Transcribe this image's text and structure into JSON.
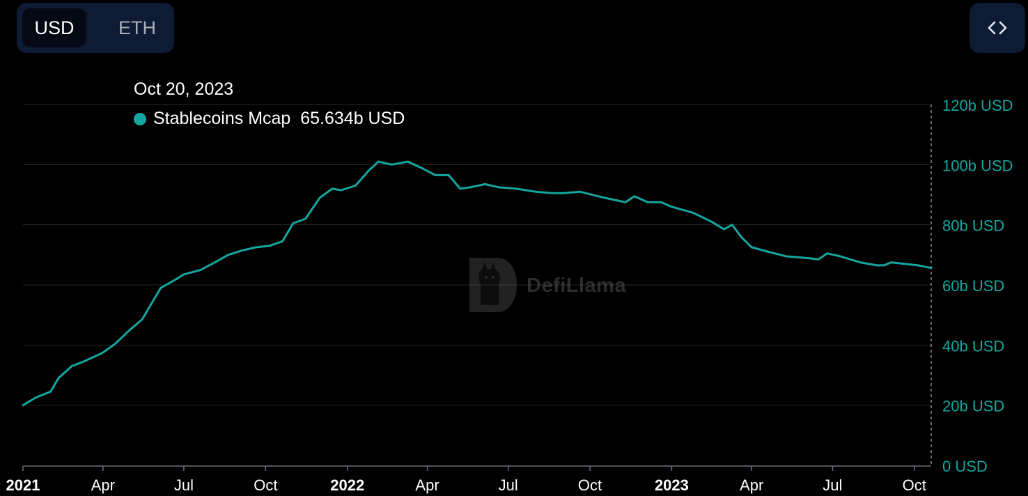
{
  "toolbar": {
    "currency_options": [
      "USD",
      "ETH"
    ],
    "selected_currency": "USD",
    "embed_icon": "code-brackets-icon"
  },
  "tooltip": {
    "date": "Oct 20, 2023",
    "series_name": "Stablecoins Mcap",
    "value": "65.634b USD"
  },
  "watermark": {
    "text": "DefiLlama",
    "icon": "llama-logo-icon"
  },
  "colors": {
    "background": "#000000",
    "line": "#14a6a0",
    "axis_label_right": "#14a6a0",
    "grid": "#2a2a2a",
    "panel": "#0e1b34"
  },
  "chart_data": {
    "type": "line",
    "title": "",
    "xlabel": "",
    "ylabel": "",
    "ylim": [
      0,
      120
    ],
    "y_ticks": [
      {
        "value": 0,
        "label": "0 USD"
      },
      {
        "value": 20,
        "label": "20b USD"
      },
      {
        "value": 40,
        "label": "40b USD"
      },
      {
        "value": 60,
        "label": "60b USD"
      },
      {
        "value": 80,
        "label": "80b USD"
      },
      {
        "value": 100,
        "label": "100b USD"
      },
      {
        "value": 120,
        "label": "120b USD"
      }
    ],
    "x_ticks": [
      {
        "date": "2021-01-01",
        "label": "2021",
        "bold": true
      },
      {
        "date": "2021-04-01",
        "label": "Apr",
        "bold": false
      },
      {
        "date": "2021-07-01",
        "label": "Jul",
        "bold": false
      },
      {
        "date": "2021-10-01",
        "label": "Oct",
        "bold": false
      },
      {
        "date": "2022-01-01",
        "label": "2022",
        "bold": true
      },
      {
        "date": "2022-04-01",
        "label": "Apr",
        "bold": false
      },
      {
        "date": "2022-07-01",
        "label": "Jul",
        "bold": false
      },
      {
        "date": "2022-10-01",
        "label": "Oct",
        "bold": false
      },
      {
        "date": "2023-01-01",
        "label": "2023",
        "bold": true
      },
      {
        "date": "2023-04-01",
        "label": "Apr",
        "bold": false
      },
      {
        "date": "2023-07-01",
        "label": "Jul",
        "bold": false
      },
      {
        "date": "2023-10-01",
        "label": "Oct",
        "bold": false
      }
    ],
    "x_range": [
      "2021-01-01",
      "2023-10-20"
    ],
    "grid": true,
    "series": [
      {
        "name": "Stablecoins Mcap",
        "unit": "b USD",
        "points": [
          [
            "2021-01-01",
            20.0
          ],
          [
            "2021-01-15",
            22.5
          ],
          [
            "2021-02-01",
            24.5
          ],
          [
            "2021-02-10",
            29.0
          ],
          [
            "2021-02-25",
            33.0
          ],
          [
            "2021-03-10",
            34.5
          ],
          [
            "2021-03-25",
            36.5
          ],
          [
            "2021-04-01",
            37.5
          ],
          [
            "2021-04-15",
            40.5
          ],
          [
            "2021-05-01",
            45.0
          ],
          [
            "2021-05-15",
            48.5
          ],
          [
            "2021-05-25",
            53.5
          ],
          [
            "2021-06-05",
            59.0
          ],
          [
            "2021-06-20",
            61.5
          ],
          [
            "2021-07-01",
            63.5
          ],
          [
            "2021-07-20",
            65.0
          ],
          [
            "2021-08-05",
            67.5
          ],
          [
            "2021-08-20",
            70.0
          ],
          [
            "2021-09-05",
            71.5
          ],
          [
            "2021-09-20",
            72.5
          ],
          [
            "2021-10-05",
            73.0
          ],
          [
            "2021-10-20",
            74.5
          ],
          [
            "2021-11-01",
            80.5
          ],
          [
            "2021-11-15",
            82.0
          ],
          [
            "2021-12-01",
            89.0
          ],
          [
            "2021-12-15",
            92.0
          ],
          [
            "2021-12-25",
            91.5
          ],
          [
            "2022-01-10",
            93.0
          ],
          [
            "2022-01-25",
            98.0
          ],
          [
            "2022-02-05",
            101.0
          ],
          [
            "2022-02-20",
            100.0
          ],
          [
            "2022-03-10",
            101.0
          ],
          [
            "2022-03-25",
            99.0
          ],
          [
            "2022-04-10",
            96.5
          ],
          [
            "2022-04-25",
            96.5
          ],
          [
            "2022-05-08",
            92.0
          ],
          [
            "2022-05-20",
            92.5
          ],
          [
            "2022-06-05",
            93.5
          ],
          [
            "2022-06-20",
            92.5
          ],
          [
            "2022-07-10",
            92.0
          ],
          [
            "2022-08-01",
            91.0
          ],
          [
            "2022-08-20",
            90.5
          ],
          [
            "2022-09-01",
            90.5
          ],
          [
            "2022-09-20",
            91.0
          ],
          [
            "2022-10-10",
            89.5
          ],
          [
            "2022-10-25",
            88.5
          ],
          [
            "2022-11-10",
            87.5
          ],
          [
            "2022-11-20",
            89.5
          ],
          [
            "2022-12-05",
            87.5
          ],
          [
            "2022-12-20",
            87.5
          ],
          [
            "2023-01-01",
            86.0
          ],
          [
            "2023-01-25",
            84.0
          ],
          [
            "2023-02-15",
            81.0
          ],
          [
            "2023-03-01",
            78.5
          ],
          [
            "2023-03-10",
            80.0
          ],
          [
            "2023-03-20",
            76.0
          ],
          [
            "2023-04-01",
            72.5
          ],
          [
            "2023-04-20",
            71.0
          ],
          [
            "2023-05-10",
            69.5
          ],
          [
            "2023-06-01",
            69.0
          ],
          [
            "2023-06-15",
            68.5
          ],
          [
            "2023-06-25",
            70.5
          ],
          [
            "2023-07-10",
            69.5
          ],
          [
            "2023-08-01",
            67.5
          ],
          [
            "2023-08-20",
            66.5
          ],
          [
            "2023-08-28",
            66.5
          ],
          [
            "2023-09-05",
            67.5
          ],
          [
            "2023-09-20",
            67.0
          ],
          [
            "2023-10-05",
            66.5
          ],
          [
            "2023-10-20",
            65.634
          ]
        ]
      }
    ]
  }
}
